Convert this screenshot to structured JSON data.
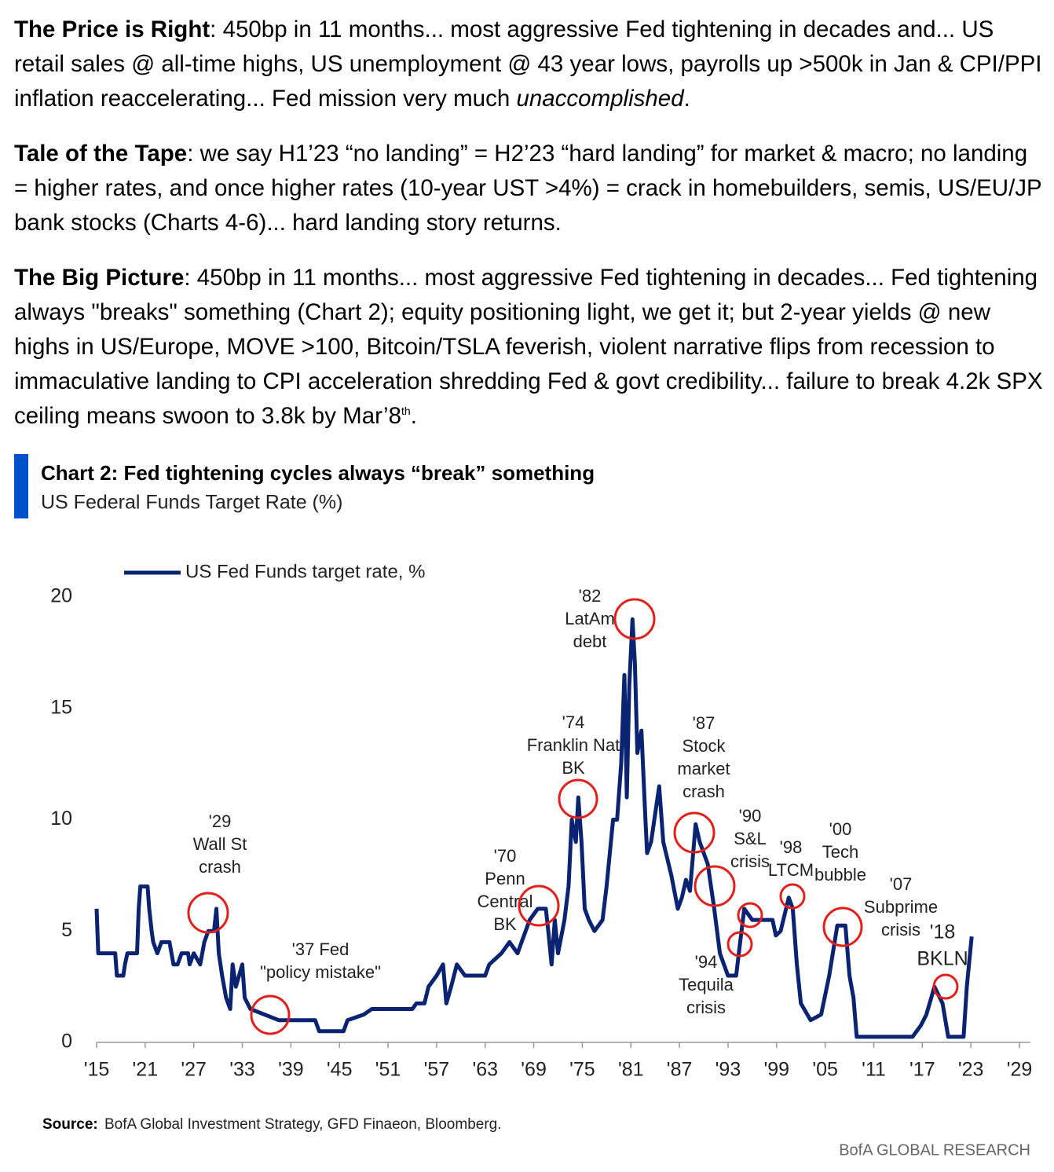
{
  "paragraphs": [
    {
      "lead": "The Price is Right",
      "text": ": 450bp in 11 months... most aggressive Fed tightening in decades and... US retail sales @ all-time highs, US unemployment @ 43 year lows, payrolls up >500k in Jan & CPI/PPI inflation reaccelerating... Fed mission very much ",
      "emphasis": "unaccomplished",
      "end": "."
    },
    {
      "lead": "Tale of the Tape",
      "text": ": we say H1’23 “no landing” = H2’23 “hard landing” for market & macro; no landing = higher rates, and once higher rates (10-year UST >4%) = crack in homebuilders, semis, US/EU/JP bank stocks (Charts 4-6)... hard landing story returns."
    },
    {
      "lead": "The Big Picture",
      "text": ": 450bp in 11 months... most aggressive Fed tightening in decades... Fed tightening always \"breaks\" something (Chart 2); equity positioning light, we get it; but 2-year yields @ new highs in US/Europe, MOVE >100, Bitcoin/TSLA feverish, violent narrative flips from recession to immaculative landing to CPI acceleration shredding Fed & govt credibility... failure to break 4.2k SPX ceiling means swoon to 3.8k by Mar’8",
      "sup": "th",
      "end": "."
    }
  ],
  "chart_data": {
    "type": "line",
    "title": "Chart 2: Fed tightening cycles always “break” something",
    "subtitle": "US Federal Funds Target Rate (%)",
    "series": [
      {
        "name": "US Fed Funds target rate, %",
        "color": "#0a2472",
        "x": [
          1915,
          1915.2,
          1916,
          1917.3,
          1917.5,
          1918.3,
          1918.5,
          1918.8,
          1920,
          1920.2,
          1920.4,
          1921.3,
          1921.5,
          1921.8,
          1922,
          1922.5,
          1923,
          1924,
          1924.5,
          1925,
          1925.5,
          1926.3,
          1926.5,
          1927,
          1927.8,
          1928.3,
          1928.8,
          1929.5,
          1929.8,
          1930.1,
          1930.5,
          1931,
          1931.5,
          1931.8,
          1932.2,
          1933,
          1933.3,
          1934,
          1937.5,
          1942,
          1942.5,
          1945.5,
          1946,
          1948,
          1949,
          1954,
          1954.5,
          1955.5,
          1956,
          1957,
          1957.8,
          1958.2,
          1958.8,
          1959.5,
          1960.5,
          1963,
          1963.5,
          1965,
          1966,
          1967,
          1967.5,
          1968.5,
          1969.5,
          1970.5,
          1970.8,
          1971.2,
          1971.6,
          1972,
          1972.8,
          1973.3,
          1973.7,
          1974.2,
          1974.5,
          1974.9,
          1975.3,
          1975.8,
          1976.5,
          1977.5,
          1978,
          1978.8,
          1979.3,
          1979.8,
          1980.2,
          1980.5,
          1980.8,
          1981.2,
          1981.5,
          1981.8,
          1982.3,
          1982.8,
          1983,
          1983.5,
          1984.5,
          1985,
          1986,
          1986.8,
          1987.3,
          1987.8,
          1988.3,
          1989,
          1989.5,
          1990.5,
          1991.3,
          1992,
          1993,
          1994,
          1994.5,
          1995,
          1996,
          1997,
          1998.5,
          1998.9,
          1999.5,
          2000.5,
          2001,
          2001.5,
          2002,
          2003.2,
          2004.5,
          2005.5,
          2006.5,
          2007.5,
          2008,
          2008.5,
          2008.9,
          2015.8,
          2016.8,
          2017.5,
          2018.5,
          2019.5,
          2020.2,
          2022.1,
          2022.5,
          2023.1
        ],
        "values": [
          6,
          4,
          4,
          4,
          3,
          3,
          3.5,
          4,
          4,
          6,
          7,
          7,
          6,
          5,
          4.5,
          4,
          4.5,
          4.5,
          3.5,
          3.5,
          4,
          4,
          3.5,
          4,
          3.5,
          4.5,
          5,
          5,
          6,
          4,
          3,
          2,
          1.5,
          3.5,
          2.5,
          3.5,
          2,
          1.5,
          1,
          1,
          0.5,
          0.5,
          1,
          1.25,
          1.5,
          1.5,
          1.75,
          1.75,
          2.5,
          3,
          3.5,
          1.75,
          2.5,
          3.5,
          3,
          3,
          3.5,
          4,
          4.5,
          4,
          4.5,
          5.5,
          6,
          6,
          5,
          3.5,
          5.5,
          4,
          5.5,
          7,
          10,
          9,
          11,
          9,
          6,
          5.5,
          5,
          5.5,
          7,
          10,
          10,
          12.5,
          16.5,
          11,
          16,
          19,
          17,
          13,
          14,
          10,
          8.5,
          9,
          11.5,
          9,
          7.5,
          6,
          6.5,
          7.3,
          6.8,
          9.8,
          9,
          8,
          6,
          4,
          3,
          3,
          4.5,
          6,
          5.5,
          5.5,
          5.5,
          4.8,
          5,
          6.5,
          6,
          3.5,
          1.75,
          1,
          1.25,
          3,
          5.25,
          5.25,
          3,
          2,
          0.25,
          0.25,
          0.75,
          1.25,
          2.5,
          1.75,
          0.25,
          0.25,
          2.5,
          4.75
        ]
      }
    ],
    "xlim": [
      1915,
      2029
    ],
    "xticks": [
      {
        "value": 1915,
        "label": "'15"
      },
      {
        "value": 1921,
        "label": "'21"
      },
      {
        "value": 1927,
        "label": "'27"
      },
      {
        "value": 1933,
        "label": "'33"
      },
      {
        "value": 1939,
        "label": "'39"
      },
      {
        "value": 1945,
        "label": "'45"
      },
      {
        "value": 1951,
        "label": "'51"
      },
      {
        "value": 1957,
        "label": "'57"
      },
      {
        "value": 1963,
        "label": "'63"
      },
      {
        "value": 1969,
        "label": "'69"
      },
      {
        "value": 1975,
        "label": "'75"
      },
      {
        "value": 1981,
        "label": "'81"
      },
      {
        "value": 1987,
        "label": "'87"
      },
      {
        "value": 1993,
        "label": "'93"
      },
      {
        "value": 1999,
        "label": "'99"
      },
      {
        "value": 2005,
        "label": "'05"
      },
      {
        "value": 2011,
        "label": "'11"
      },
      {
        "value": 2017,
        "label": "'17"
      },
      {
        "value": 2023,
        "label": "'23"
      },
      {
        "value": 2029,
        "label": "'29"
      }
    ],
    "ylim": [
      0,
      20
    ],
    "yticks": [
      0,
      5,
      10,
      15,
      20
    ],
    "legend": "top-left",
    "annotations": [
      [
        "'29",
        "Wall St",
        "crash"
      ],
      [
        "'37 Fed",
        "\"policy mistake\""
      ],
      [
        "'70",
        "Penn",
        "Central",
        "BK"
      ],
      [
        "'74",
        "Franklin Nat",
        "BK"
      ],
      [
        "'82",
        "LatAm",
        "debt"
      ],
      [
        "'87",
        "Stock",
        "market",
        "crash"
      ],
      [
        "'90",
        "S&L",
        "crisis"
      ],
      [
        "'94",
        "Tequila",
        "crisis"
      ],
      [
        "'98",
        "LTCM"
      ],
      [
        "'00",
        "Tech",
        "bubble"
      ],
      [
        "'07",
        "Subprime",
        "crisis"
      ],
      [
        "'18",
        "BKLN"
      ]
    ],
    "source_label": "Source:",
    "source": "BofA Global Investment Strategy, GFD Finaeon, Bloomberg.",
    "footer": "BofA GLOBAL RESEARCH"
  }
}
